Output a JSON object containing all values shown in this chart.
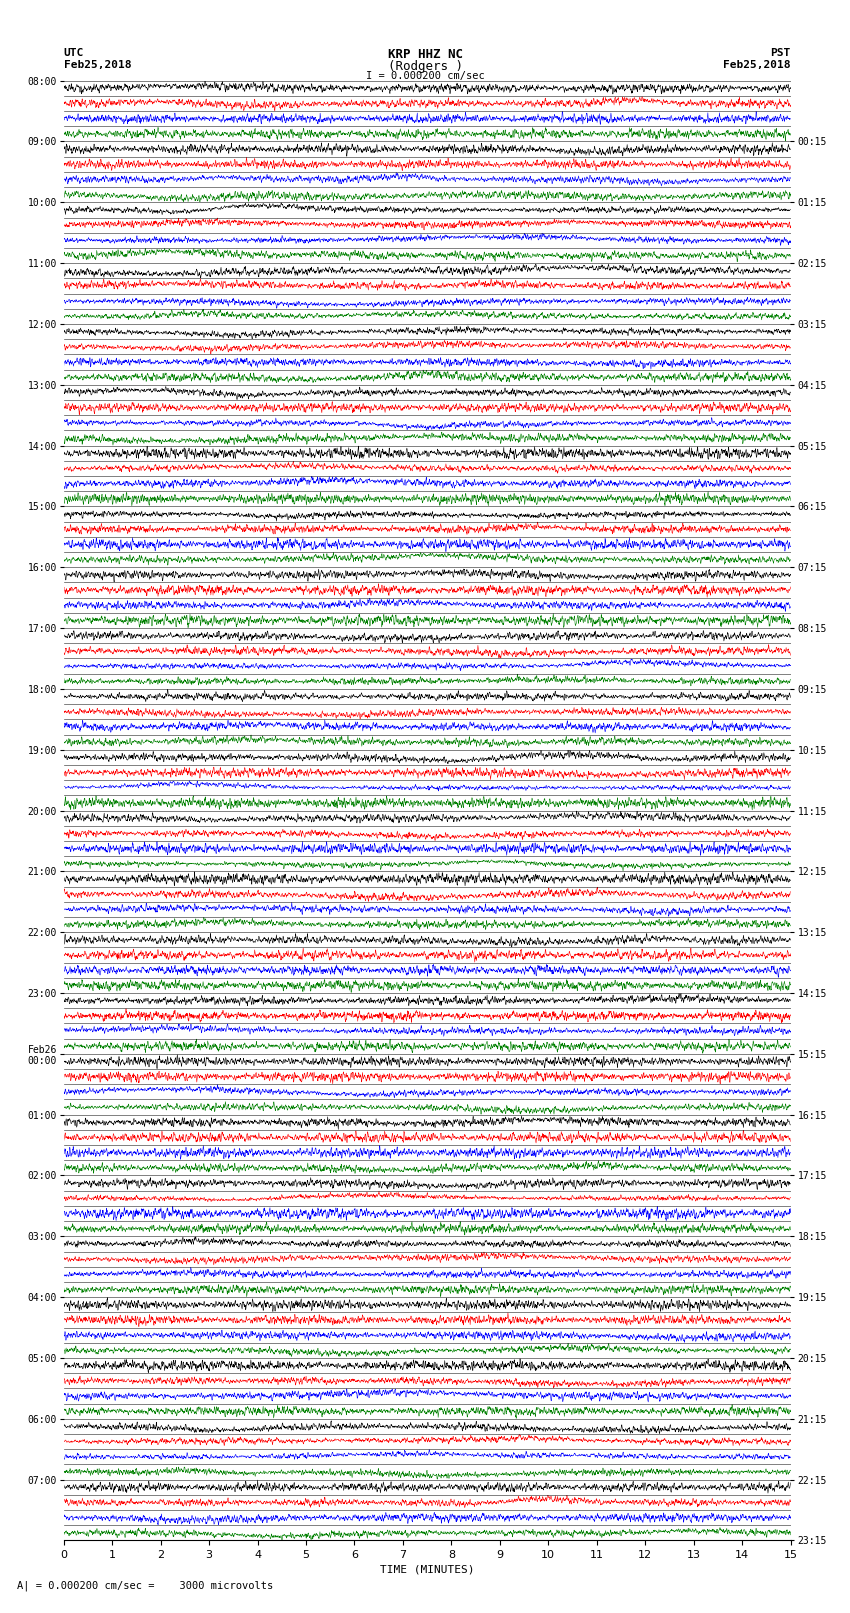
{
  "title_line1": "KRP HHZ NC",
  "title_line2": "(Rodgers )",
  "scale_label": "I = 0.000200 cm/sec",
  "footer_label": "A| = 0.000200 cm/sec =    3000 microvolts",
  "xlabel": "TIME (MINUTES)",
  "left_timezone": "UTC",
  "left_date": "Feb25,2018",
  "right_timezone": "PST",
  "right_date": "Feb25,2018",
  "left_times": [
    "08:00",
    "09:00",
    "10:00",
    "11:00",
    "12:00",
    "13:00",
    "14:00",
    "15:00",
    "16:00",
    "17:00",
    "18:00",
    "19:00",
    "20:00",
    "21:00",
    "22:00",
    "23:00",
    "Feb26\n00:00",
    "01:00",
    "02:00",
    "03:00",
    "04:00",
    "05:00",
    "06:00",
    "07:00"
  ],
  "right_times": [
    "00:15",
    "01:15",
    "02:15",
    "03:15",
    "04:15",
    "05:15",
    "06:15",
    "07:15",
    "08:15",
    "09:15",
    "10:15",
    "11:15",
    "12:15",
    "13:15",
    "14:15",
    "15:15",
    "16:15",
    "17:15",
    "18:15",
    "19:15",
    "20:15",
    "21:15",
    "22:15",
    "23:15"
  ],
  "num_rows": 24,
  "minutes_per_row": 15,
  "colors": [
    "black",
    "red",
    "blue",
    "green"
  ],
  "bg_color": "white",
  "noise_seed": 42
}
